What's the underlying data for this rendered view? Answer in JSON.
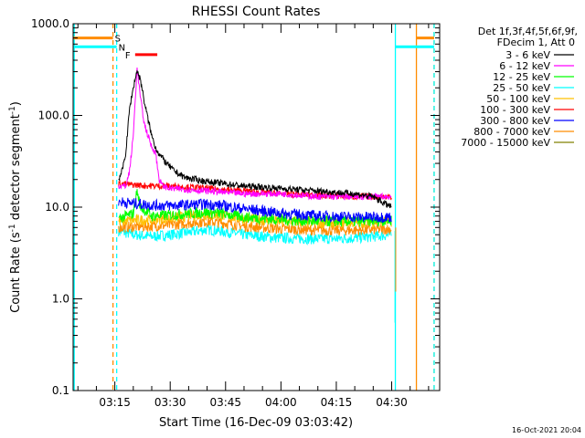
{
  "chart_data": {
    "type": "line",
    "title": "RHESSI Count Rates",
    "xlabel": "Start Time (16-Dec-09 03:03:42)",
    "ylabel_main": "Count Rate (s",
    "ylabel_sup1": "-1",
    "ylabel_mid": " detector segment",
    "ylabel_sup2": "-1",
    "ylabel_end": ")",
    "y_scale": "log",
    "ylim": [
      0.1,
      1000
    ],
    "y_ticks": [
      1000,
      100,
      10,
      1,
      0.1
    ],
    "y_tick_labels": [
      "1000.0",
      "100.0",
      "10.0",
      "1.0",
      "0.1"
    ],
    "x_ticks": [
      "03:15",
      "03:30",
      "03:45",
      "04:00",
      "04:15",
      "04:30"
    ],
    "x_tick_minutes": [
      15,
      30,
      45,
      60,
      75,
      90
    ],
    "x_range_minutes": [
      3.7,
      103.0
    ],
    "legend_header": [
      "Det 1f,3f,4f,5f,6f,9f,",
      "FDecim 1, Att 0"
    ],
    "legend_placement": "right",
    "series": [
      {
        "name": "3 - 6 keV",
        "color": "#000000",
        "points": [
          [
            16,
            20
          ],
          [
            17,
            25
          ],
          [
            18,
            40
          ],
          [
            19,
            120
          ],
          [
            20,
            200
          ],
          [
            21,
            310
          ],
          [
            22,
            240
          ],
          [
            23,
            140
          ],
          [
            24,
            90
          ],
          [
            25,
            60
          ],
          [
            26,
            45
          ],
          [
            27,
            38
          ],
          [
            29,
            30
          ],
          [
            31,
            25
          ],
          [
            34,
            21
          ],
          [
            40,
            19
          ],
          [
            50,
            17
          ],
          [
            60,
            16
          ],
          [
            70,
            15
          ],
          [
            80,
            14
          ],
          [
            85,
            13
          ],
          [
            88,
            11
          ],
          [
            90,
            10
          ]
        ]
      },
      {
        "name": "6 - 12 keV",
        "color": "#ff00ff",
        "points": [
          [
            16,
            17
          ],
          [
            18,
            17
          ],
          [
            19,
            25
          ],
          [
            20,
            60
          ],
          [
            21,
            330
          ],
          [
            22,
            150
          ],
          [
            23,
            80
          ],
          [
            24,
            60
          ],
          [
            25,
            45
          ],
          [
            26,
            40
          ],
          [
            27,
            20
          ],
          [
            28,
            17
          ],
          [
            30,
            16
          ],
          [
            40,
            15
          ],
          [
            50,
            14
          ],
          [
            60,
            14
          ],
          [
            70,
            13
          ],
          [
            80,
            13
          ],
          [
            90,
            13
          ]
        ]
      },
      {
        "name": "12 - 25 keV",
        "color": "#00ff00",
        "points": [
          [
            16,
            7.5
          ],
          [
            20,
            8.5
          ],
          [
            21,
            15
          ],
          [
            22,
            10
          ],
          [
            25,
            8
          ],
          [
            30,
            8.2
          ],
          [
            35,
            8.5
          ],
          [
            40,
            8.8
          ],
          [
            45,
            8.4
          ],
          [
            50,
            7.8
          ],
          [
            60,
            7.3
          ],
          [
            70,
            7.0
          ],
          [
            80,
            7.0
          ],
          [
            90,
            7.2
          ]
        ]
      },
      {
        "name": "25 - 50 keV",
        "color": "#00ffff",
        "points": [
          [
            16,
            5.5
          ],
          [
            20,
            5.0
          ],
          [
            25,
            4.8
          ],
          [
            30,
            5.0
          ],
          [
            35,
            5.3
          ],
          [
            40,
            5.7
          ],
          [
            45,
            5.4
          ],
          [
            50,
            5.0
          ],
          [
            60,
            4.6
          ],
          [
            70,
            4.5
          ],
          [
            80,
            4.6
          ],
          [
            90,
            5.0
          ]
        ]
      },
      {
        "name": "50 - 100 keV",
        "color": "#ffc000",
        "points": [
          [
            16,
            7.0
          ],
          [
            20,
            7.2
          ],
          [
            25,
            7.3
          ],
          [
            30,
            7.6
          ],
          [
            35,
            8.0
          ],
          [
            40,
            8.3
          ],
          [
            45,
            8.0
          ],
          [
            50,
            7.5
          ],
          [
            60,
            7.0
          ],
          [
            70,
            6.8
          ],
          [
            80,
            6.8
          ],
          [
            90,
            7.0
          ]
        ]
      },
      {
        "name": "100 - 300 keV",
        "color": "#ff0000",
        "points": [
          [
            16,
            18
          ],
          [
            20,
            17.5
          ],
          [
            25,
            17
          ],
          [
            30,
            17
          ],
          [
            35,
            16.5
          ],
          [
            40,
            16
          ],
          [
            50,
            15
          ],
          [
            60,
            14
          ],
          [
            70,
            13.5
          ],
          [
            80,
            13
          ],
          [
            90,
            13
          ]
        ]
      },
      {
        "name": "300 - 800 keV",
        "color": "#0000ff",
        "points": [
          [
            16,
            11.5
          ],
          [
            20,
            11
          ],
          [
            25,
            10.5
          ],
          [
            30,
            10.4
          ],
          [
            35,
            10.6
          ],
          [
            40,
            10.8
          ],
          [
            45,
            10.3
          ],
          [
            50,
            9.6
          ],
          [
            60,
            8.6
          ],
          [
            70,
            8.0
          ],
          [
            80,
            7.8
          ],
          [
            90,
            7.8
          ]
        ]
      },
      {
        "name": "800 - 7000 keV",
        "color": "#ff8c00",
        "points": [
          [
            16,
            6.0
          ],
          [
            20,
            6.1
          ],
          [
            25,
            6.2
          ],
          [
            30,
            6.4
          ],
          [
            35,
            6.7
          ],
          [
            40,
            7.0
          ],
          [
            45,
            6.7
          ],
          [
            50,
            6.2
          ],
          [
            60,
            5.8
          ],
          [
            70,
            5.6
          ],
          [
            80,
            5.6
          ],
          [
            90,
            5.8
          ]
        ]
      },
      {
        "name": "7000 - 15000 keV",
        "color": "#808000",
        "points": []
      }
    ],
    "flags": [
      {
        "label": "S",
        "color": "#ff8c00",
        "start": 3.7,
        "end": 14.5,
        "value": 700
      },
      {
        "label": "N",
        "color": "#00ffff",
        "start": 3.7,
        "end": 15.5,
        "value": 560
      },
      {
        "label": "F",
        "color": "#ff0000",
        "start": 20.5,
        "end": 26.5,
        "value": 460
      }
    ],
    "vertical_markers": [
      {
        "minute": 4.0,
        "color": "#00ffff",
        "style": "solid"
      },
      {
        "minute": 14.5,
        "color": "#ff8c00",
        "style": "dashed"
      },
      {
        "minute": 15.5,
        "color": "#00ffff",
        "style": "dashed"
      },
      {
        "minute": 91.0,
        "color": "#00ffff",
        "style": "solid"
      },
      {
        "minute": 96.7,
        "color": "#ff8c00",
        "style": "solid"
      },
      {
        "minute": 101.5,
        "color": "#ff8c00",
        "style": "dashed"
      },
      {
        "minute": 101.5,
        "color": "#00ffff",
        "style": "dashed"
      }
    ],
    "right_flags": [
      {
        "color": "#00ffff",
        "start": 91.0,
        "end": 101.5,
        "value": 560
      },
      {
        "color": "#ff8c00",
        "start": 96.7,
        "end": 101.5,
        "value": 700
      }
    ]
  },
  "footer_timestamp": "16-Oct-2021 20:04"
}
